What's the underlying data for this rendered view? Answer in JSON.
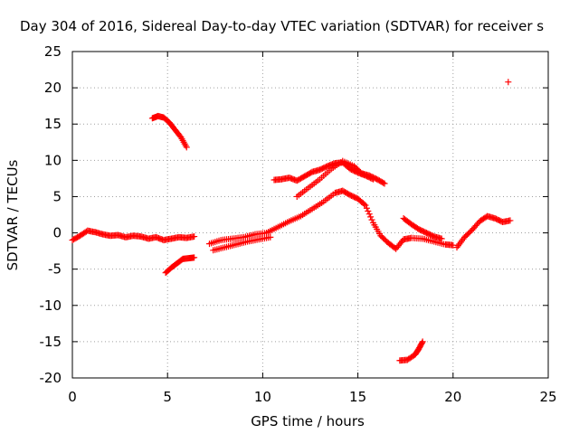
{
  "chart_data": {
    "type": "scatter",
    "title": "Day 304 of 2016, Sidereal Day-to-day VTEC variation (SDTVAR) for receiver s",
    "xlabel": "GPS time / hours",
    "ylabel": "SDTVAR / TECUs",
    "xlim": [
      0,
      25
    ],
    "ylim": [
      -20,
      25
    ],
    "xticks": [
      0,
      5,
      10,
      15,
      20,
      25
    ],
    "yticks": [
      -20,
      -15,
      -10,
      -5,
      0,
      5,
      10,
      15,
      20,
      25
    ],
    "grid": true,
    "marker": "+",
    "color": "#ff0000",
    "series": [
      {
        "name": "baseline-noise-early",
        "x": [
          0,
          0.4,
          0.8,
          1.2,
          1.6,
          2.0,
          2.4,
          2.8,
          3.2,
          3.6,
          4.0,
          4.4,
          4.8,
          5.2,
          5.6,
          6.0,
          6.4
        ],
        "y": [
          -1.0,
          -0.4,
          0.3,
          0.1,
          -0.2,
          -0.4,
          -0.3,
          -0.6,
          -0.4,
          -0.5,
          -0.8,
          -0.6,
          -1.0,
          -0.8,
          -0.6,
          -0.7,
          -0.5
        ]
      },
      {
        "name": "arc-upper-left",
        "x": [
          4.2,
          4.5,
          4.8,
          5.1,
          5.4,
          5.7,
          6.0
        ],
        "y": [
          15.8,
          16.1,
          15.9,
          15.2,
          14.2,
          13.2,
          11.8
        ]
      },
      {
        "name": "arc-lower-left",
        "x": [
          4.9,
          5.2,
          5.5,
          5.8,
          6.1,
          6.4
        ],
        "y": [
          -5.5,
          -4.8,
          -4.2,
          -3.6,
          -3.5,
          -3.4
        ]
      },
      {
        "name": "midday-rise",
        "x": [
          7.2,
          7.8,
          8.4,
          9.0,
          9.6,
          10.2,
          10.8,
          11.4,
          12.0,
          12.6,
          13.2,
          13.8,
          14.2,
          14.6,
          15.0,
          15.4,
          15.8,
          16.2,
          16.6,
          17.0,
          17.4,
          17.8,
          18.4,
          19.0,
          19.6,
          20.0
        ],
        "y": [
          -1.5,
          -1.0,
          -0.8,
          -0.6,
          -0.2,
          0.0,
          0.8,
          1.6,
          2.3,
          3.3,
          4.3,
          5.5,
          5.8,
          5.2,
          4.7,
          3.8,
          1.4,
          -0.4,
          -1.4,
          -2.2,
          -0.9,
          -0.7,
          -0.8,
          -1.2,
          -1.6,
          -1.7
        ]
      },
      {
        "name": "midday-lower-branch",
        "x": [
          7.4,
          8.0,
          8.6,
          9.2,
          9.8,
          10.4
        ],
        "y": [
          -2.4,
          -2.0,
          -1.6,
          -1.2,
          -0.9,
          -0.6
        ]
      },
      {
        "name": "evening-upper-band",
        "x": [
          10.6,
          11.0,
          11.4,
          11.8,
          12.2,
          12.6,
          13.0,
          13.4,
          13.8,
          14.2,
          14.6,
          15.0,
          15.4,
          15.8
        ],
        "y": [
          7.3,
          7.4,
          7.6,
          7.2,
          7.8,
          8.4,
          8.7,
          9.2,
          9.6,
          9.7,
          8.8,
          8.3,
          7.9,
          7.4
        ]
      },
      {
        "name": "evening-rising-band",
        "x": [
          11.8,
          12.4,
          13.0,
          13.6,
          14.2,
          14.8,
          15.2,
          15.6,
          16.0,
          16.4
        ],
        "y": [
          5.0,
          6.2,
          7.4,
          8.8,
          9.9,
          9.2,
          8.2,
          7.9,
          7.4,
          6.8
        ]
      },
      {
        "name": "late-evening-branch",
        "x": [
          17.4,
          17.8,
          18.2,
          18.6,
          19.0,
          19.4
        ],
        "y": [
          2.0,
          1.2,
          0.5,
          0.0,
          -0.5,
          -0.8
        ]
      },
      {
        "name": "night-rise",
        "x": [
          20.2,
          20.6,
          21.0,
          21.4,
          21.8,
          22.2,
          22.6,
          23.0
        ],
        "y": [
          -2.0,
          -0.6,
          0.4,
          1.6,
          2.3,
          2.0,
          1.5,
          1.7
        ]
      },
      {
        "name": "arc-lower-right",
        "x": [
          17.2,
          17.6,
          18.0,
          18.2,
          18.4
        ],
        "y": [
          -17.6,
          -17.5,
          -16.8,
          -16.0,
          -15.0
        ]
      },
      {
        "name": "outlier",
        "x": [
          22.9
        ],
        "y": [
          20.8
        ]
      }
    ]
  }
}
